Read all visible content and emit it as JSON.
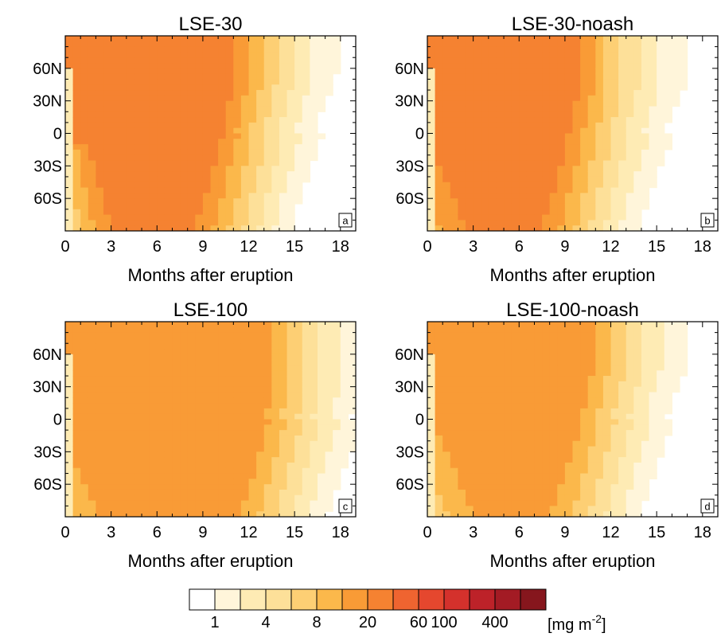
{
  "chart_data": [
    {
      "type": "heatmap",
      "title": "LSE-30",
      "panel_label": "a",
      "xlabel": "Months after eruption",
      "xlim": [
        0,
        19
      ],
      "ylim": [
        -90,
        90
      ],
      "x_ticks": [
        "0",
        "3",
        "6",
        "9",
        "12",
        "15",
        "18"
      ],
      "y_ticks": [
        "60N",
        "30N",
        "0",
        "30S",
        "60S"
      ],
      "peak_level": 7,
      "peak_region": {
        "months": [
          3.5,
          6.5
        ],
        "lat": [
          55,
          90
        ]
      }
    },
    {
      "type": "heatmap",
      "title": "LSE-30-noash",
      "panel_label": "b",
      "xlabel": "Months after eruption",
      "xlim": [
        0,
        19
      ],
      "ylim": [
        -90,
        90
      ],
      "x_ticks": [
        "0",
        "3",
        "6",
        "9",
        "12",
        "15",
        "18"
      ],
      "y_ticks": [
        "60N",
        "30N",
        "0",
        "30S",
        "60S"
      ],
      "peak_level": 7,
      "peak_region": {
        "months": [
          1,
          5
        ],
        "lat": [
          40,
          90
        ]
      }
    },
    {
      "type": "heatmap",
      "title": "LSE-100",
      "panel_label": "c",
      "xlabel": "Months after eruption",
      "xlim": [
        0,
        19
      ],
      "ylim": [
        -90,
        90
      ],
      "x_ticks": [
        "0",
        "3",
        "6",
        "9",
        "12",
        "15",
        "18"
      ],
      "y_ticks": [
        "60N",
        "30N",
        "0",
        "30S",
        "60S"
      ],
      "peak_level": 6,
      "peak_region": {
        "months": [
          1,
          9
        ],
        "lat": [
          25,
          90
        ]
      }
    },
    {
      "type": "heatmap",
      "title": "LSE-100-noash",
      "panel_label": "d",
      "xlabel": "Months after eruption",
      "xlim": [
        0,
        19
      ],
      "ylim": [
        -90,
        90
      ],
      "x_ticks": [
        "0",
        "3",
        "6",
        "9",
        "12",
        "15",
        "18"
      ],
      "y_ticks": [
        "60N",
        "30N",
        "0",
        "30S",
        "60S"
      ],
      "peak_level": 6,
      "peak_region": {
        "months": [
          1,
          6
        ],
        "lat": [
          55,
          90
        ]
      }
    }
  ],
  "colorbar": {
    "colors": [
      "#ffffff",
      "#fff5da",
      "#feebb4",
      "#fde099",
      "#fdcf74",
      "#fbb84b",
      "#f99b36",
      "#f58231",
      "#ef6430",
      "#e5472e",
      "#d4312c",
      "#bd2229",
      "#a31b24",
      "#86161d"
    ],
    "labels": [
      {
        "text": "1",
        "boundary": 1
      },
      {
        "text": "4",
        "boundary": 3
      },
      {
        "text": "8",
        "boundary": 5
      },
      {
        "text": "20",
        "boundary": 7
      },
      {
        "text": "60",
        "boundary": 9
      },
      {
        "text": "100",
        "boundary": 10
      },
      {
        "text": "400",
        "boundary": 12
      }
    ],
    "units": "[mg m",
    "units_exp": "-2",
    "units_close": "]"
  }
}
